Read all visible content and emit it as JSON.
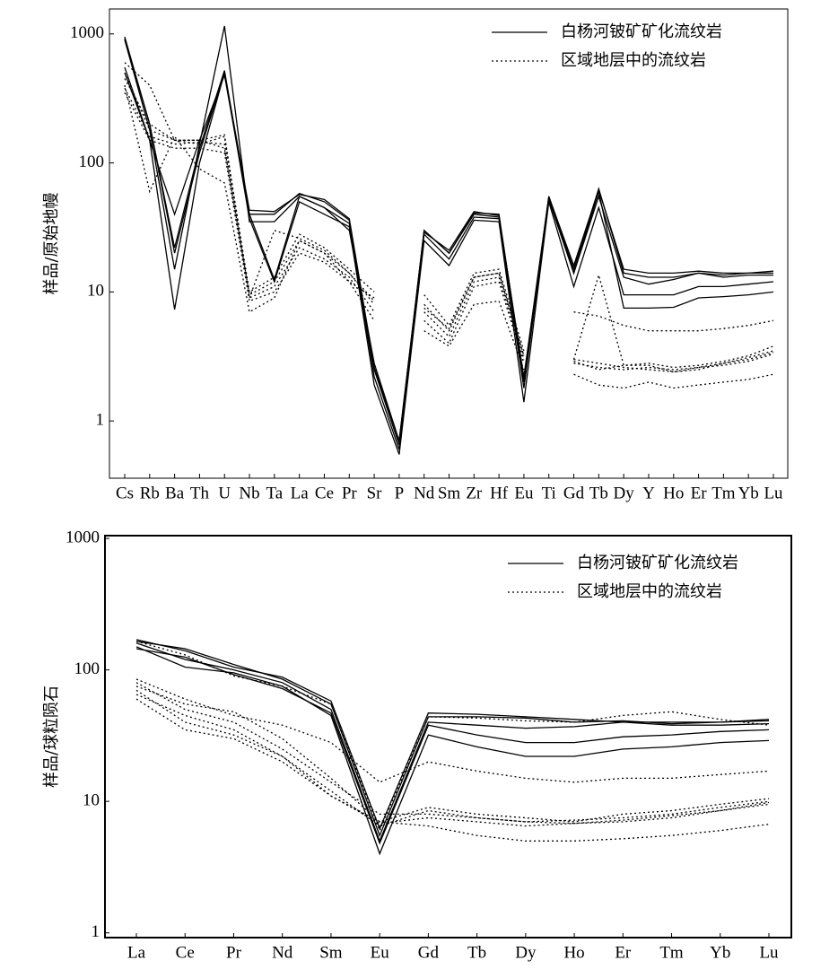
{
  "chart_data": [
    {
      "type": "line",
      "y_label": "样品/原始地幔",
      "log_scale": true,
      "legend": "upper right",
      "ylim": [
        0.36,
        1560
      ],
      "yticks": [
        1,
        10,
        100,
        1000
      ],
      "categories": [
        "Cs",
        "Rb",
        "Ba",
        "Th",
        "U",
        "Nb",
        "Ta",
        "La",
        "Ce",
        "Pr",
        "Sr",
        "P",
        "Nd",
        "Sm",
        "Zr",
        "Hf",
        "Eu",
        "Ti",
        "Gd",
        "Tb",
        "Dy",
        "Y",
        "Ho",
        "Er",
        "Tm",
        "Yb",
        "Lu"
      ],
      "series": [
        {
          "name": "白杨河铍矿矿化流纹岩",
          "color": "#000000",
          "dash": "solid",
          "values": [
            [
              950,
              200,
              22,
              130,
              520,
              40,
              40,
              58,
              50,
              36,
              2.5,
              0.65,
              30,
              20,
              41,
              40,
              2.0,
              55,
              16,
              62,
              15,
              14,
              14,
              14.5,
              14,
              14,
              14.5
            ],
            [
              900,
              180,
              15,
              140,
              1150,
              35,
              35,
              55,
              45,
              34,
              2.2,
              0.6,
              28,
              18,
              38,
              37,
              1.8,
              52,
              14,
              55,
              13,
              11.5,
              12.5,
              14,
              13.5,
              14,
              14
            ],
            [
              550,
              150,
              7.3,
              100,
              500,
              37,
              12,
              50,
              40,
              32,
              1.9,
              0.55,
              25,
              16,
              36,
              35,
              1.4,
              50,
              11,
              45,
              9.5,
              9.5,
              9.5,
              11,
              11,
              11.5,
              12
            ],
            [
              500,
              150,
              40,
              150,
              480,
              40,
              12.5,
              55,
              45,
              30,
              2.8,
              0.7,
              30,
              20,
              40,
              38,
              2.2,
              55,
              14,
              60,
              7.5,
              7.5,
              7.6,
              9,
              9.2,
              9.5,
              10
            ],
            [
              920,
              200,
              20,
              120,
              500,
              43,
              42,
              57,
              52,
              37,
              2.6,
              0.7,
              29,
              21,
              42,
              39,
              2.1,
              54,
              15,
              63,
              14,
              13,
              13,
              14,
              13,
              13.5,
              13.5
            ]
          ]
        },
        {
          "name": "区域地层中的流纹岩",
          "color": "#000000",
          "dash": "dotted",
          "values": [
            [
              600,
              400,
              150,
              140,
              160,
              10,
              13,
              28,
              22,
              15,
              10,
              null,
              9.5,
              5.5,
              14,
              15,
              3.5,
              null,
              7,
              6.5,
              5.5,
              5,
              5,
              5,
              5.2,
              5.5,
              6
            ],
            [
              450,
              200,
              150,
              150,
              130,
              9.5,
              12,
              25,
              20,
              14,
              8,
              null,
              8,
              5,
              13,
              14,
              3.2,
              null,
              3,
              13.5,
              2.7,
              2.8,
              2.6,
              2.7,
              2.9,
              3.2,
              3.8
            ],
            [
              380,
              160,
              140,
              145,
              140,
              9,
              11,
              22,
              18,
              13,
              7,
              null,
              7,
              4.5,
              12,
              13,
              3,
              null,
              3,
              2.8,
              2.6,
              2.5,
              2.4,
              2.5,
              2.8,
              3,
              3.4
            ],
            [
              350,
              150,
              130,
              130,
              120,
              8.5,
              10,
              20,
              17,
              12,
              9,
              null,
              6,
              4,
              11,
              12,
              2.8,
              null,
              2.8,
              2.6,
              2.5,
              2.6,
              2.5,
              2.6,
              2.7,
              2.9,
              3.3
            ],
            [
              400,
              60,
              160,
              90,
              70,
              7,
              9,
              25,
              20,
              12,
              6,
              null,
              5,
              3.8,
              8,
              8.5,
              2.5,
              null,
              2.3,
              1.9,
              1.8,
              2,
              1.8,
              1.9,
              2,
              2.1,
              2.3
            ],
            [
              500,
              180,
              150,
              150,
              165,
              9,
              30,
              26,
              21,
              14,
              8.5,
              null,
              7.5,
              5.2,
              13,
              14,
              3.2,
              null,
              2.9,
              2.5,
              2.7,
              2.7,
              2.4,
              2.6,
              2.8,
              3.1,
              3.5
            ]
          ]
        }
      ]
    },
    {
      "type": "line",
      "y_label": "样品/球粒陨石",
      "log_scale": true,
      "legend": "upper right",
      "ylim": [
        0.92,
        1050
      ],
      "yticks": [
        1,
        10,
        100,
        1000
      ],
      "categories": [
        "La",
        "Ce",
        "Pr",
        "Nd",
        "Sm",
        "Eu",
        "Gd",
        "Tb",
        "Dy",
        "Ho",
        "Er",
        "Tm",
        "Yb",
        "Lu"
      ],
      "series": [
        {
          "name": "白杨河铍矿矿化流纹岩",
          "color": "#000000",
          "dash": "solid",
          "values": [
            [
              170,
              140,
              105,
              88,
              58,
              6.2,
              47,
              46,
              44,
              42,
              40,
              40,
              40,
              41
            ],
            [
              165,
              145,
              110,
              85,
              55,
              5.5,
              44,
              44,
              43,
              40,
              41,
              39,
              40,
              42
            ],
            [
              160,
              120,
              100,
              80,
              50,
              5,
              40,
              38,
              36,
              37,
              40,
              38,
              38,
              39
            ],
            [
              150,
              105,
              95,
              75,
              45,
              4,
              32,
              26,
              22,
              22,
              25,
              26,
              28,
              29
            ],
            [
              145,
              125,
              92,
              72,
              47,
              4.8,
              38,
              32,
              28,
              28,
              31,
              32,
              34,
              35
            ]
          ]
        },
        {
          "name": "区域地层中的流纹岩",
          "color": "#000000",
          "dash": "dotted",
          "values": [
            [
              165,
              130,
              90,
              75,
              55,
              6,
              44,
              43,
              41,
              40,
              45,
              48,
              42,
              38
            ],
            [
              85,
              60,
              45,
              38,
              28,
              14,
              20,
              17,
              15,
              14,
              15,
              15,
              16,
              17
            ],
            [
              75,
              55,
              48,
              30,
              15,
              7,
              9,
              8,
              7.5,
              7,
              8,
              8.5,
              9.5,
              10.5
            ],
            [
              65,
              45,
              35,
              22,
              12,
              6.5,
              8.5,
              7.5,
              7,
              7.2,
              7.5,
              8,
              9,
              10
            ],
            [
              60,
              35,
              30,
              20,
              11,
              6.8,
              7.5,
              7,
              6.5,
              6.8,
              7.2,
              7.8,
              8.5,
              9.5
            ],
            [
              80,
              50,
              40,
              25,
              14,
              8,
              8,
              7.5,
              7,
              6.8,
              7,
              7.5,
              8.5,
              9.8
            ],
            [
              70,
              40,
              32,
              22,
              11,
              7,
              6.5,
              5.5,
              5,
              5,
              5.2,
              5.5,
              6,
              6.7
            ]
          ]
        }
      ]
    }
  ]
}
